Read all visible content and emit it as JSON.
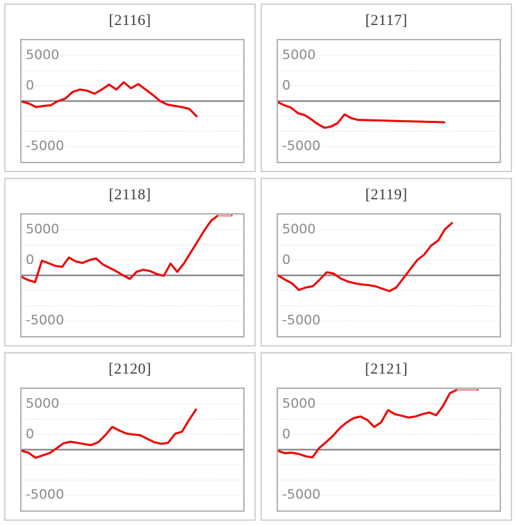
{
  "page": {
    "background": "#ffffff"
  },
  "colors": {
    "series_line": "#ee0404",
    "series_line_capped": "#f2a8a8",
    "zero_line": "#757575",
    "grid_dotted": "#d8d8d8",
    "plot_border": "#b2b2b2",
    "panel_border": "#d2d2d2",
    "tick_label": "#8a8a8a",
    "title_text": "#3a3a3a"
  },
  "chart_data": [
    {
      "type": "line",
      "title": "[2116]",
      "ytick_labels": [
        "5000",
        "0",
        "-5000"
      ],
      "yticks": [
        5000,
        0,
        -5000
      ],
      "ylim": [
        -5000,
        5000
      ],
      "grid_step": 1250,
      "end_frac": 0.79,
      "values": [
        -50,
        -200,
        -500,
        -400,
        -350,
        0,
        200,
        750,
        950,
        850,
        600,
        950,
        1350,
        950,
        1550,
        1050,
        1400,
        950,
        500,
        0,
        -300,
        -400,
        -500,
        -650,
        -1250
      ]
    },
    {
      "type": "line",
      "title": "[2117]",
      "ytick_labels": [
        "5000",
        "0",
        "-5000"
      ],
      "yticks": [
        5000,
        0,
        -5000
      ],
      "ylim": [
        -5000,
        5000
      ],
      "grid_step": 1250,
      "end_frac": 0.75,
      "values": [
        -100,
        -350,
        -550,
        -1000,
        -1150,
        -1500,
        -1900,
        -2200,
        -2100,
        -1800,
        -1100,
        -1400,
        -1550,
        -1565,
        -1580,
        -1595,
        -1610,
        -1625,
        -1640,
        -1655,
        -1670,
        -1685,
        -1700,
        -1715,
        -1730,
        -1750
      ]
    },
    {
      "type": "line",
      "title": "[2118]",
      "ytick_labels": [
        "5000",
        "0",
        "-5000"
      ],
      "yticks": [
        5000,
        0,
        -5000
      ],
      "ylim": [
        -5000,
        5000
      ],
      "grid_step": 1250,
      "end_frac": 0.947,
      "values": [
        -130,
        -390,
        -560,
        1200,
        1000,
        780,
        700,
        1470,
        1150,
        1020,
        1250,
        1400,
        900,
        620,
        330,
        0,
        -290,
        300,
        460,
        350,
        100,
        -40,
        960,
        290,
        1000,
        1900,
        2800,
        3700,
        4500,
        5010,
        5080,
        5120
      ]
    },
    {
      "type": "line",
      "title": "[2119]",
      "ytick_labels": [
        "5000",
        "0",
        "-5000"
      ],
      "yticks": [
        5000,
        0,
        -5000
      ],
      "ylim": [
        -5000,
        5000
      ],
      "grid_step": 1250,
      "end_frac": 0.785,
      "values": [
        0,
        -350,
        -650,
        -1200,
        -1000,
        -900,
        -350,
        250,
        150,
        -250,
        -500,
        -650,
        -750,
        -800,
        -900,
        -1100,
        -1300,
        -1000,
        -250,
        500,
        1250,
        1700,
        2450,
        2850,
        3800,
        4300
      ]
    },
    {
      "type": "line",
      "title": "[2120]",
      "ytick_labels": [
        "5000",
        "0",
        "-5000"
      ],
      "yticks": [
        5000,
        0,
        -5000
      ],
      "ylim": [
        -5000,
        5000
      ],
      "grid_step": 1250,
      "end_frac": 0.787,
      "values": [
        -100,
        -250,
        -670,
        -480,
        -290,
        100,
        520,
        650,
        560,
        460,
        370,
        620,
        1190,
        1870,
        1580,
        1330,
        1250,
        1190,
        900,
        620,
        480,
        560,
        1300,
        1480,
        2440,
        3300
      ]
    },
    {
      "type": "line",
      "title": "[2121]",
      "ytick_labels": [
        "5000",
        "0",
        "-5000"
      ],
      "yticks": [
        5000,
        0,
        -5000
      ],
      "ylim": [
        -5000,
        5000
      ],
      "grid_step": 1250,
      "end_frac": 0.9,
      "values": [
        -100,
        -290,
        -250,
        -350,
        -540,
        -640,
        140,
        620,
        1140,
        1770,
        2250,
        2600,
        2730,
        2440,
        1870,
        2250,
        3250,
        2920,
        2790,
        2640,
        2730,
        2920,
        3060,
        2830,
        3600,
        4650,
        5050,
        5150,
        5150,
        5150
      ]
    }
  ]
}
